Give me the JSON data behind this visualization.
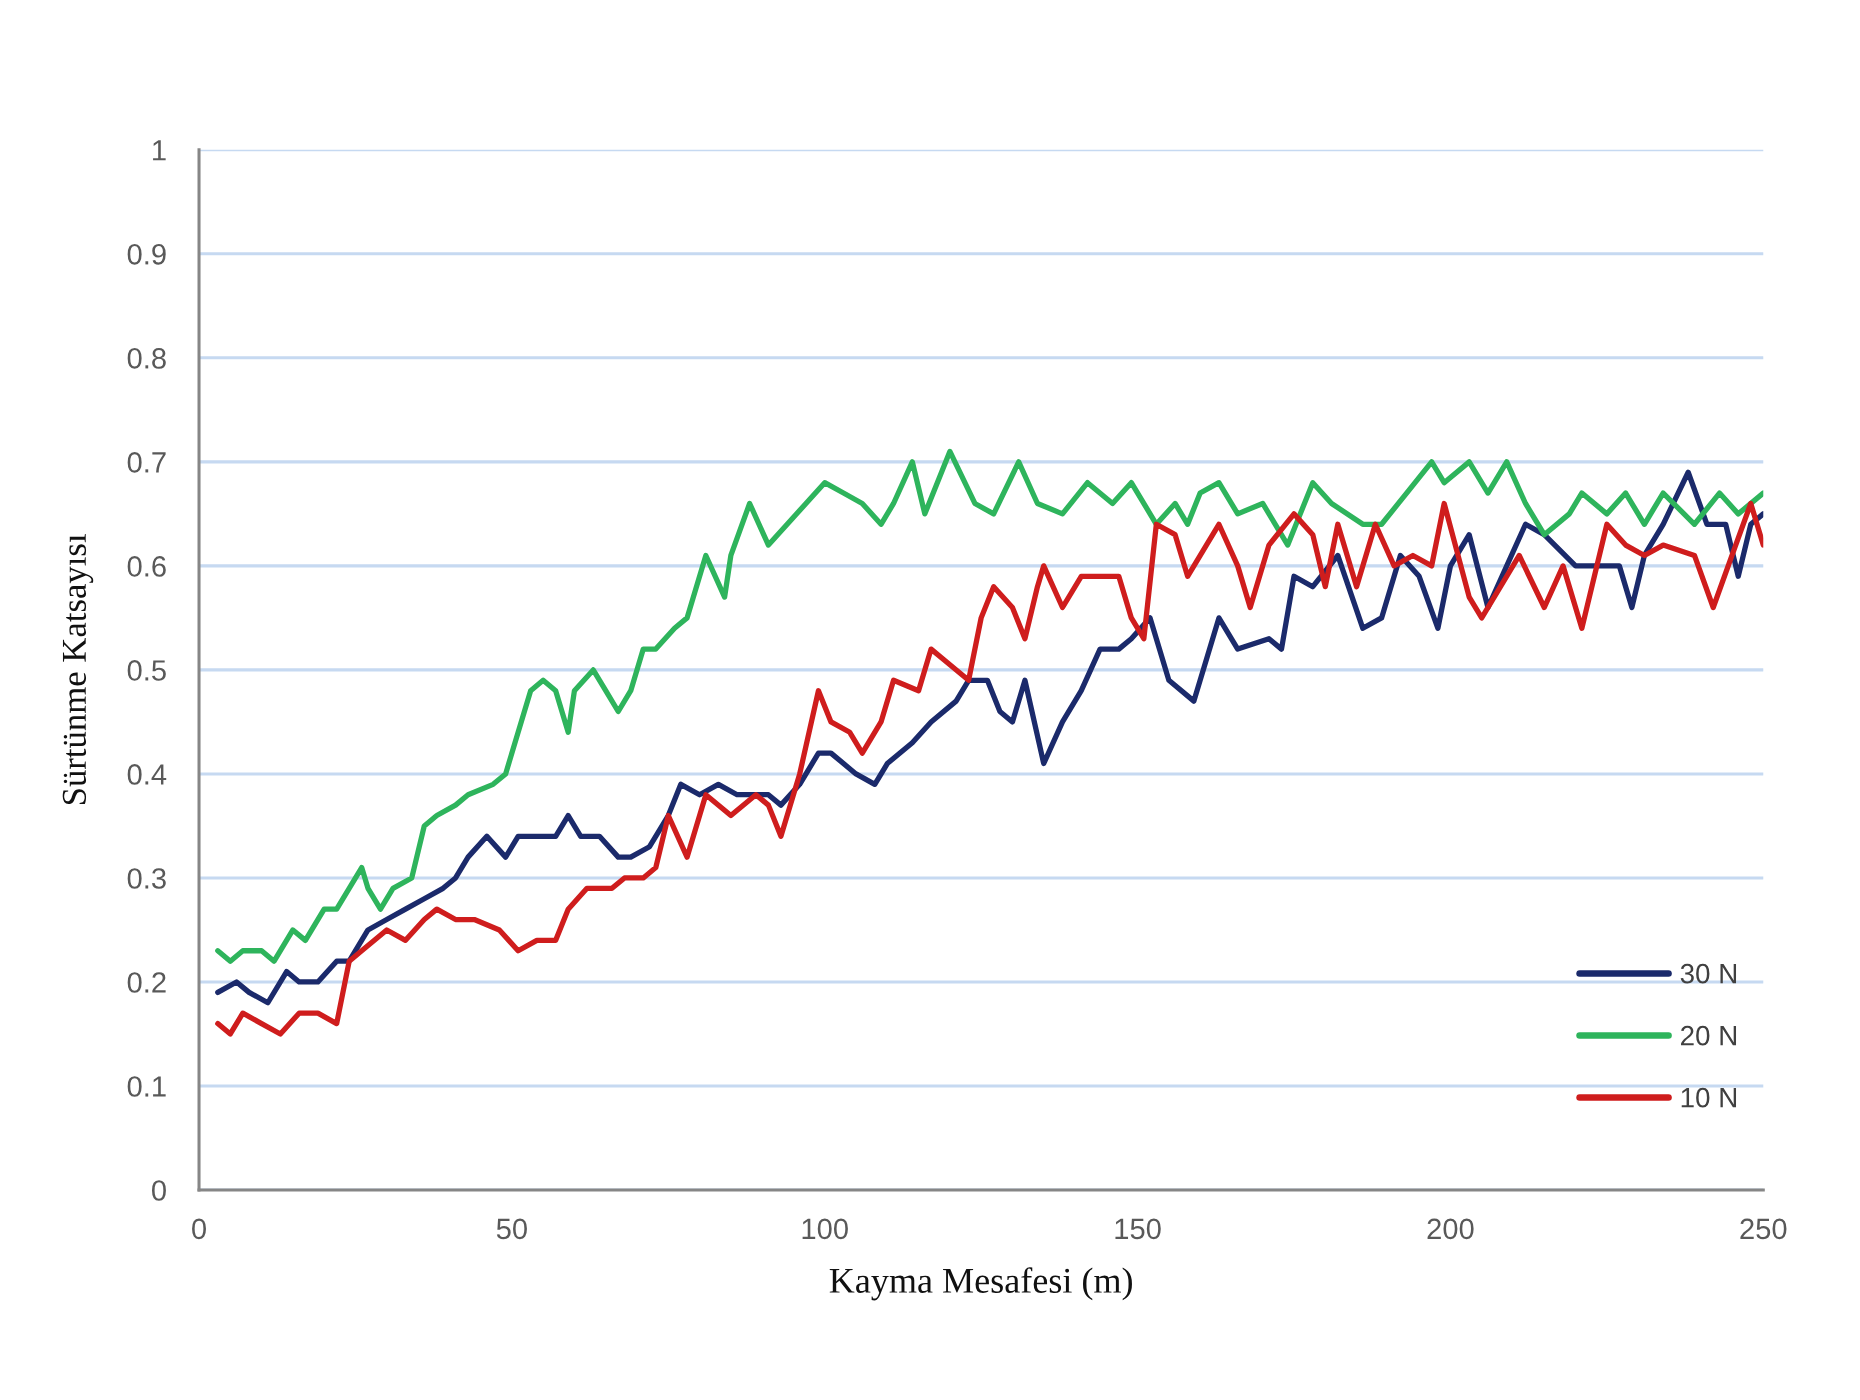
{
  "chart_data": {
    "type": "line",
    "xlabel": "Kayma Mesafesi (m)",
    "ylabel": "Sürtünme Katsayısı",
    "xlim": [
      0,
      250
    ],
    "ylim": [
      0,
      1
    ],
    "xticks": [
      0,
      50,
      100,
      150,
      200,
      250
    ],
    "yticks": [
      0,
      0.1,
      0.2,
      0.3,
      0.4,
      0.5,
      0.6,
      0.7,
      0.8,
      0.9,
      1
    ],
    "grid": "y",
    "legend": "bottom right",
    "line_style": "solid",
    "series": [
      {
        "name": "30 N",
        "color": "#1b2a6b",
        "x": [
          3,
          6,
          8,
          11,
          14,
          16,
          19,
          22,
          24,
          27,
          30,
          33,
          36,
          39,
          41,
          43,
          46,
          49,
          51,
          54,
          57,
          59,
          61,
          64,
          67,
          69,
          72,
          75,
          77,
          80,
          83,
          86,
          91,
          93,
          96,
          99,
          101,
          105,
          108,
          110,
          114,
          117,
          121,
          123,
          126,
          128,
          130,
          132,
          135,
          138,
          141,
          144,
          147,
          149,
          152,
          155,
          159,
          163,
          166,
          171,
          173,
          175,
          178,
          182,
          186,
          189,
          192,
          195,
          198,
          200,
          203,
          206,
          209,
          212,
          215,
          220,
          223,
          227,
          229,
          231,
          234,
          238,
          241,
          244,
          246,
          248,
          250
        ],
        "values": [
          0.19,
          0.2,
          0.19,
          0.18,
          0.21,
          0.2,
          0.2,
          0.22,
          0.22,
          0.25,
          0.26,
          0.27,
          0.28,
          0.29,
          0.3,
          0.32,
          0.34,
          0.32,
          0.34,
          0.34,
          0.34,
          0.36,
          0.34,
          0.34,
          0.32,
          0.32,
          0.33,
          0.36,
          0.39,
          0.38,
          0.39,
          0.38,
          0.38,
          0.37,
          0.39,
          0.42,
          0.42,
          0.4,
          0.39,
          0.41,
          0.43,
          0.45,
          0.47,
          0.49,
          0.49,
          0.46,
          0.45,
          0.49,
          0.41,
          0.45,
          0.48,
          0.52,
          0.52,
          0.53,
          0.55,
          0.49,
          0.47,
          0.55,
          0.52,
          0.53,
          0.52,
          0.59,
          0.58,
          0.61,
          0.54,
          0.55,
          0.61,
          0.59,
          0.54,
          0.6,
          0.63,
          0.56,
          0.6,
          0.64,
          0.63,
          0.6,
          0.6,
          0.6,
          0.56,
          0.61,
          0.64,
          0.69,
          0.64,
          0.64,
          0.59,
          0.64,
          0.65
        ]
      },
      {
        "name": "20 N",
        "color": "#2eb45c",
        "x": [
          3,
          5,
          7,
          10,
          12,
          15,
          17,
          20,
          22,
          24,
          26,
          27,
          29,
          31,
          34,
          36,
          38,
          41,
          43,
          47,
          49,
          51,
          53,
          55,
          57,
          59,
          60,
          63,
          65,
          67,
          69,
          71,
          73,
          76,
          78,
          81,
          84,
          85,
          88,
          91,
          94,
          97,
          100,
          103,
          106,
          109,
          111,
          114,
          116,
          120,
          124,
          127,
          131,
          134,
          138,
          142,
          146,
          149,
          153,
          156,
          158,
          160,
          163,
          166,
          170,
          174,
          178,
          181,
          186,
          189,
          193,
          197,
          199,
          203,
          206,
          209,
          212,
          215,
          219,
          221,
          225,
          228,
          231,
          234,
          239,
          243,
          246,
          250
        ],
        "values": [
          0.23,
          0.22,
          0.23,
          0.23,
          0.22,
          0.25,
          0.24,
          0.27,
          0.27,
          0.29,
          0.31,
          0.29,
          0.27,
          0.29,
          0.3,
          0.35,
          0.36,
          0.37,
          0.38,
          0.39,
          0.4,
          0.44,
          0.48,
          0.49,
          0.48,
          0.44,
          0.48,
          0.5,
          0.48,
          0.46,
          0.48,
          0.52,
          0.52,
          0.54,
          0.55,
          0.61,
          0.57,
          0.61,
          0.66,
          0.62,
          0.64,
          0.66,
          0.68,
          0.67,
          0.66,
          0.64,
          0.66,
          0.7,
          0.65,
          0.71,
          0.66,
          0.65,
          0.7,
          0.66,
          0.65,
          0.68,
          0.66,
          0.68,
          0.64,
          0.66,
          0.64,
          0.67,
          0.68,
          0.65,
          0.66,
          0.62,
          0.68,
          0.66,
          0.64,
          0.64,
          0.67,
          0.7,
          0.68,
          0.7,
          0.67,
          0.7,
          0.66,
          0.63,
          0.65,
          0.67,
          0.65,
          0.67,
          0.64,
          0.67,
          0.64,
          0.67,
          0.65,
          0.67
        ]
      },
      {
        "name": "10 N",
        "color": "#cf1d1d",
        "x": [
          3,
          5,
          7,
          10,
          13,
          16,
          19,
          22,
          24,
          26,
          30,
          33,
          36,
          38,
          41,
          44,
          48,
          51,
          54,
          57,
          59,
          62,
          66,
          68,
          71,
          73,
          75,
          78,
          81,
          85,
          89,
          91,
          93,
          96,
          99,
          101,
          104,
          106,
          109,
          111,
          115,
          117,
          119,
          123,
          125,
          127,
          130,
          132,
          134,
          135,
          138,
          141,
          144,
          147,
          149,
          151,
          153,
          156,
          158,
          161,
          163,
          166,
          168,
          171,
          175,
          178,
          180,
          182,
          185,
          188,
          191,
          194,
          197,
          199,
          203,
          205,
          208,
          211,
          215,
          218,
          221,
          225,
          228,
          231,
          234,
          239,
          242,
          245,
          248,
          250
        ],
        "values": [
          0.16,
          0.15,
          0.17,
          0.16,
          0.15,
          0.17,
          0.17,
          0.16,
          0.22,
          0.23,
          0.25,
          0.24,
          0.26,
          0.27,
          0.26,
          0.26,
          0.25,
          0.23,
          0.24,
          0.24,
          0.27,
          0.29,
          0.29,
          0.3,
          0.3,
          0.31,
          0.36,
          0.32,
          0.38,
          0.36,
          0.38,
          0.37,
          0.34,
          0.4,
          0.48,
          0.45,
          0.44,
          0.42,
          0.45,
          0.49,
          0.48,
          0.52,
          0.51,
          0.49,
          0.55,
          0.58,
          0.56,
          0.53,
          0.58,
          0.6,
          0.56,
          0.59,
          0.59,
          0.59,
          0.55,
          0.53,
          0.64,
          0.63,
          0.59,
          0.62,
          0.64,
          0.6,
          0.56,
          0.62,
          0.65,
          0.63,
          0.58,
          0.64,
          0.58,
          0.64,
          0.6,
          0.61,
          0.6,
          0.66,
          0.57,
          0.55,
          0.58,
          0.61,
          0.56,
          0.6,
          0.54,
          0.64,
          0.62,
          0.61,
          0.62,
          0.61,
          0.56,
          0.61,
          0.66,
          0.62
        ]
      }
    ]
  }
}
